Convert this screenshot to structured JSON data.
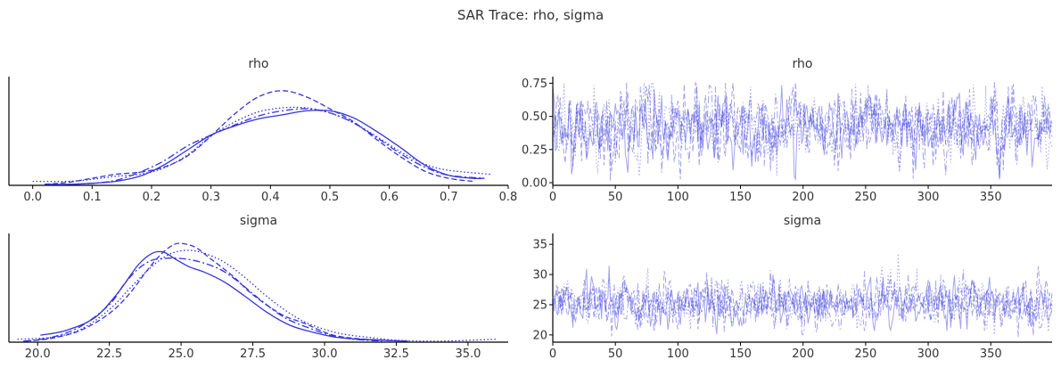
{
  "figure": {
    "title": "SAR Trace: rho, sigma",
    "line_color": "#3333dd"
  },
  "chart_data": [
    {
      "type": "line",
      "title": "rho",
      "xlabel": "",
      "ylabel": "",
      "xlim": [
        -0.04,
        0.8
      ],
      "ylim": [
        0,
        1.08
      ],
      "xticks": [
        "0.0",
        "0.1",
        "0.2",
        "0.3",
        "0.4",
        "0.5",
        "0.6",
        "0.7",
        "0.8"
      ],
      "yticks": [],
      "grid": false,
      "series": [
        {
          "style": "solid",
          "x": [
            0.02,
            0.06,
            0.1,
            0.14,
            0.18,
            0.22,
            0.26,
            0.3,
            0.34,
            0.38,
            0.42,
            0.46,
            0.5,
            0.54,
            0.58,
            0.62,
            0.66,
            0.7,
            0.74,
            0.76
          ],
          "y": [
            0.01,
            0.01,
            0.02,
            0.04,
            0.09,
            0.2,
            0.35,
            0.5,
            0.59,
            0.66,
            0.7,
            0.74,
            0.74,
            0.67,
            0.53,
            0.37,
            0.2,
            0.1,
            0.07,
            0.07
          ]
        },
        {
          "style": "dashed",
          "x": [
            0.02,
            0.06,
            0.1,
            0.14,
            0.18,
            0.22,
            0.26,
            0.3,
            0.34,
            0.38,
            0.42,
            0.46,
            0.5,
            0.54,
            0.58,
            0.62,
            0.66,
            0.7,
            0.74
          ],
          "y": [
            0.01,
            0.03,
            0.07,
            0.11,
            0.13,
            0.18,
            0.29,
            0.49,
            0.71,
            0.88,
            0.94,
            0.88,
            0.76,
            0.63,
            0.45,
            0.28,
            0.14,
            0.07,
            0.04
          ]
        },
        {
          "style": "dotted",
          "x": [
            0.0,
            0.06,
            0.1,
            0.14,
            0.18,
            0.22,
            0.26,
            0.3,
            0.34,
            0.38,
            0.42,
            0.46,
            0.5,
            0.54,
            0.58,
            0.62,
            0.66,
            0.7,
            0.77
          ],
          "y": [
            0.04,
            0.04,
            0.06,
            0.09,
            0.11,
            0.17,
            0.3,
            0.49,
            0.63,
            0.73,
            0.77,
            0.77,
            0.72,
            0.62,
            0.48,
            0.33,
            0.21,
            0.15,
            0.11
          ]
        },
        {
          "style": "dashdot",
          "x": [
            0.02,
            0.06,
            0.1,
            0.14,
            0.18,
            0.22,
            0.26,
            0.3,
            0.34,
            0.38,
            0.42,
            0.46,
            0.5,
            0.54,
            0.58,
            0.62,
            0.66,
            0.7,
            0.76
          ],
          "y": [
            0.01,
            0.01,
            0.02,
            0.05,
            0.13,
            0.24,
            0.39,
            0.5,
            0.6,
            0.69,
            0.74,
            0.76,
            0.72,
            0.62,
            0.47,
            0.31,
            0.18,
            0.1,
            0.07
          ]
        }
      ]
    },
    {
      "type": "line",
      "title": "rho",
      "xlabel": "",
      "ylabel": "",
      "xlim": [
        0,
        399
      ],
      "ylim": [
        -0.02,
        0.8
      ],
      "xticks": [
        "0",
        "50",
        "100",
        "150",
        "200",
        "250",
        "300",
        "350"
      ],
      "yticks": [
        "0.00",
        "0.25",
        "0.50",
        "0.75"
      ],
      "grid": false,
      "n_chains": 4,
      "draws_per_chain": 400,
      "mean": 0.43,
      "sd": 0.13,
      "observed_min": 0.01,
      "observed_max": 0.76
    },
    {
      "type": "line",
      "title": "sigma",
      "xlabel": "",
      "ylabel": "",
      "xlim": [
        19.0,
        36.4
      ],
      "ylim": [
        0,
        1.1
      ],
      "xticks": [
        "20.0",
        "22.5",
        "25.0",
        "27.5",
        "30.0",
        "32.5",
        "35.0"
      ],
      "yticks": [],
      "grid": false,
      "series": [
        {
          "style": "solid",
          "x": [
            20.1,
            21.0,
            22.0,
            22.8,
            23.5,
            24.0,
            24.4,
            24.8,
            25.3,
            25.8,
            26.5,
            27.2,
            28.0,
            28.8,
            29.6,
            30.4,
            31.2,
            32.0,
            32.8
          ],
          "y": [
            0.07,
            0.12,
            0.25,
            0.5,
            0.78,
            0.9,
            0.91,
            0.84,
            0.76,
            0.71,
            0.61,
            0.47,
            0.3,
            0.17,
            0.1,
            0.05,
            0.03,
            0.02,
            0.01
          ]
        },
        {
          "style": "dashed",
          "x": [
            19.6,
            20.5,
            21.5,
            22.5,
            23.2,
            23.8,
            24.3,
            24.7,
            25.0,
            25.5,
            26.0,
            26.8,
            27.5,
            28.5,
            29.3,
            30.2,
            31.0,
            32.0,
            33.0
          ],
          "y": [
            0.01,
            0.04,
            0.12,
            0.29,
            0.49,
            0.72,
            0.89,
            0.98,
            1.0,
            0.96,
            0.85,
            0.67,
            0.48,
            0.28,
            0.19,
            0.08,
            0.04,
            0.02,
            0.01
          ]
        },
        {
          "style": "dotted",
          "x": [
            19.3,
            20.5,
            21.5,
            22.5,
            23.3,
            24.0,
            24.6,
            25.2,
            25.8,
            26.5,
            27.2,
            28.0,
            28.8,
            29.5,
            30.5,
            31.5,
            32.5,
            34.0,
            36.0
          ],
          "y": [
            0.03,
            0.05,
            0.13,
            0.33,
            0.57,
            0.77,
            0.89,
            0.93,
            0.9,
            0.81,
            0.66,
            0.46,
            0.29,
            0.18,
            0.09,
            0.05,
            0.02,
            0.01,
            0.03
          ]
        },
        {
          "style": "dashdot",
          "x": [
            19.5,
            20.5,
            21.5,
            22.5,
            23.0,
            23.5,
            24.0,
            24.6,
            25.2,
            25.8,
            26.4,
            27.0,
            27.8,
            28.6,
            29.4,
            30.2,
            31.0,
            32.0
          ],
          "y": [
            0.01,
            0.05,
            0.16,
            0.38,
            0.58,
            0.74,
            0.83,
            0.85,
            0.84,
            0.8,
            0.73,
            0.61,
            0.42,
            0.25,
            0.15,
            0.07,
            0.03,
            0.01
          ]
        }
      ]
    },
    {
      "type": "line",
      "title": "sigma",
      "xlabel": "",
      "ylabel": "",
      "xlim": [
        0,
        399
      ],
      "ylim": [
        18.8,
        36.8
      ],
      "xticks": [
        "0",
        "50",
        "100",
        "150",
        "200",
        "250",
        "300",
        "350"
      ],
      "yticks": [
        "20",
        "25",
        "30",
        "35"
      ],
      "grid": false,
      "n_chains": 4,
      "draws_per_chain": 400,
      "mean": 25.3,
      "sd": 2.0,
      "observed_min": 19.5,
      "observed_max": 36.2
    }
  ]
}
